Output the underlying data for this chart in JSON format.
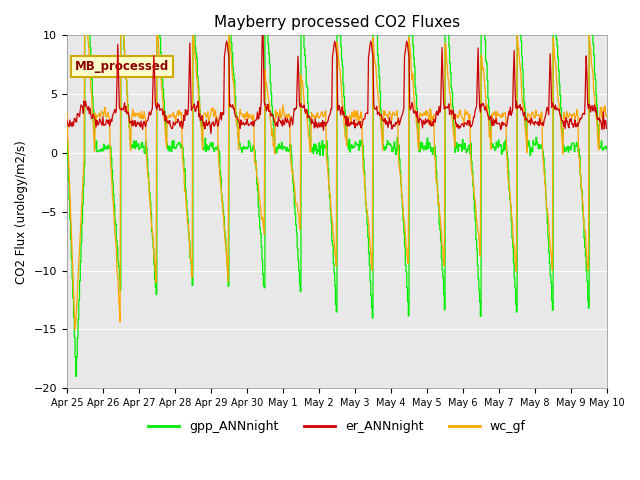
{
  "title": "Mayberry processed CO2 Fluxes",
  "ylabel": "CO2 Flux (urology/m2/s)",
  "ylim": [
    -20,
    10
  ],
  "background_color": "#e8e8e8",
  "fig_bg": "#ffffff",
  "gpp_color": "#00ee00",
  "er_color": "#cc0000",
  "wc_color": "#ffa500",
  "legend_label": "MB_processed",
  "legend_bg": "#ffffcc",
  "legend_edge": "#ccaa00",
  "n_days": 15,
  "pts_per_day": 48,
  "seed": 7
}
